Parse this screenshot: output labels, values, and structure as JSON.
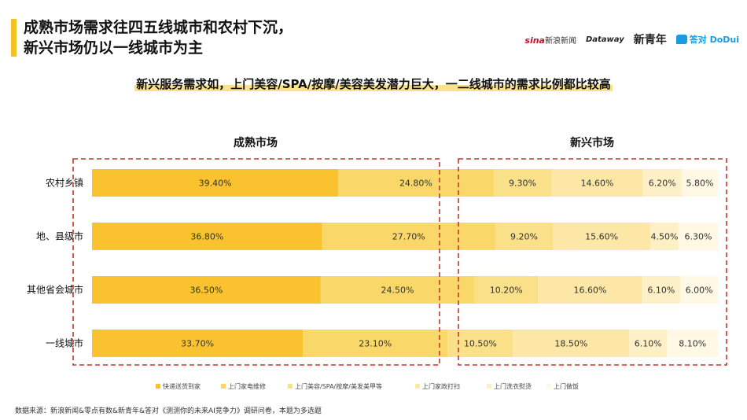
{
  "header": {
    "title_line1": "成熟市场需求往四五线城市和农村下沉，",
    "title_line2": "新兴市场仍以一线城市为主",
    "subtitle": "新兴服务需求如，上门美容/SPA/按摩/美容美发潜力巨大，一二线城市的需求比例都比较高"
  },
  "logos": {
    "sina": "sina",
    "sina_text": "新浪新闻",
    "dataway": "Dataway",
    "xqn": "新青年",
    "dodui": "答对 DoDui"
  },
  "footer": {
    "source": "数据来源：新浪新闻&零点有数&新青年&答对《测测你的未来AI竞争力》调研问卷，本题为多选题"
  },
  "chart_data": {
    "type": "bar",
    "orientation": "horizontal",
    "stacked": true,
    "groups": [
      {
        "title": "成熟市场",
        "series_names": [
          "快递送货到家",
          "上门家电维修"
        ]
      },
      {
        "title": "新兴市场",
        "series_names": [
          "上门美容/SPA/按摩/美发美甲等",
          "上门家政打扫",
          "上门洗衣熨烫",
          "上门做饭"
        ]
      }
    ],
    "categories": [
      "农村乡镇",
      "地、县级市",
      "其他省会城市",
      "一线城市"
    ],
    "series": [
      {
        "name": "快递送货到家",
        "color": "#f9c22e",
        "values": [
          39.4,
          36.8,
          36.5,
          33.7
        ],
        "labels": [
          "39.40%",
          "36.80%",
          "36.50%",
          "33.70%"
        ]
      },
      {
        "name": "上门家电维修",
        "color": "#fad769",
        "values": [
          24.8,
          27.7,
          24.5,
          23.1
        ],
        "labels": [
          "24.80%",
          "27.70%",
          "24.50%",
          "23.10%"
        ]
      },
      {
        "name": "上门美容/SPA/按摩/美发美甲等",
        "color": "#fbe08a",
        "values": [
          9.3,
          9.2,
          10.2,
          10.5
        ],
        "labels": [
          "9.30%",
          "9.20%",
          "10.20%",
          "10.50%"
        ]
      },
      {
        "name": "上门家政打扫",
        "color": "#fce7a6",
        "values": [
          14.6,
          15.6,
          16.6,
          18.5
        ],
        "labels": [
          "14.60%",
          "15.60%",
          "16.60%",
          "18.50%"
        ]
      },
      {
        "name": "上门洗衣熨烫",
        "color": "#fdf0c6",
        "values": [
          6.2,
          4.5,
          6.1,
          6.1
        ],
        "labels": [
          "6.20%",
          "4.50%",
          "6.10%",
          "6.10%"
        ]
      },
      {
        "name": "上门做饭",
        "color": "#fef8e4",
        "values": [
          5.8,
          6.3,
          6.0,
          8.1
        ],
        "labels": [
          "5.80%",
          "6.30%",
          "6.00%",
          "8.10%"
        ]
      }
    ],
    "xlim": [
      0,
      100
    ],
    "grid": false,
    "legend_position": "bottom",
    "dashed_box_color": "#c0392b"
  }
}
